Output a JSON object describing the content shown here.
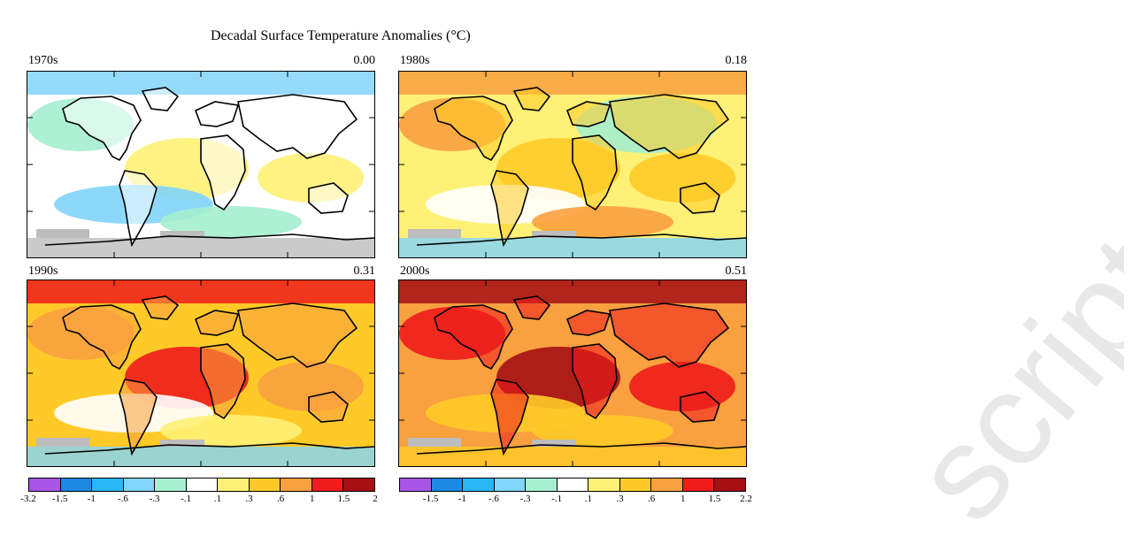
{
  "title": "Decadal Surface Temperature Anomalies (°C)",
  "panels": [
    {
      "decade": "1970s",
      "global_mean": "0.00",
      "scheme": "cool"
    },
    {
      "decade": "1980s",
      "global_mean": "0.18",
      "scheme": "mild"
    },
    {
      "decade": "1990s",
      "global_mean": "0.31",
      "scheme": "warm"
    },
    {
      "decade": "2000s",
      "global_mean": "0.51",
      "scheme": "hot"
    }
  ],
  "colorbar_left": {
    "ticks": [
      "-3.2",
      "-1.5",
      "-1",
      "-.6",
      "-.3",
      "-.1",
      ".1",
      ".3",
      ".6",
      "1",
      "1.5",
      "2"
    ],
    "colors": [
      "#a855e8",
      "#1e88e5",
      "#29b6f6",
      "#81d4fa",
      "#a5eecf",
      "#ffffff",
      "#fff176",
      "#ffca28",
      "#f9a03f",
      "#ee1c1c",
      "#a50f15"
    ]
  },
  "colorbar_right": {
    "ticks": [
      "-1.5",
      "-1",
      "-.6",
      "-.3",
      "-.1",
      ".1",
      ".3",
      ".6",
      "1",
      "1.5",
      "2.2"
    ],
    "colors": [
      "#a855e8",
      "#1e88e5",
      "#29b6f6",
      "#81d4fa",
      "#a5eecf",
      "#ffffff",
      "#fff176",
      "#ffca28",
      "#f9a03f",
      "#ee1c1c",
      "#a50f15"
    ]
  },
  "watermark_text": "script"
}
